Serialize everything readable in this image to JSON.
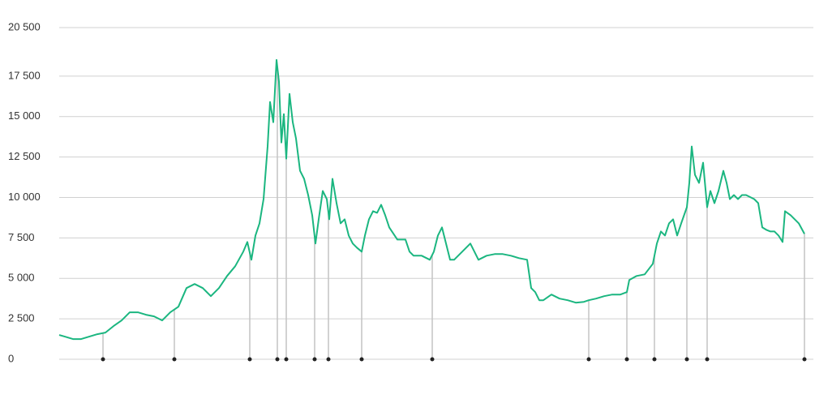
{
  "chart_data": {
    "type": "line",
    "x": [
      0,
      7,
      17,
      27,
      37,
      47,
      57,
      67,
      77,
      87,
      97,
      107,
      117,
      127,
      137,
      147,
      157,
      167,
      177,
      187,
      197,
      207,
      217,
      227,
      232,
      237,
      242,
      247,
      252,
      257,
      260,
      264,
      268,
      271,
      274,
      277,
      280,
      284,
      288,
      292,
      297,
      302,
      307,
      312,
      316,
      320,
      325,
      330,
      333,
      337,
      342,
      347,
      352,
      357,
      362,
      367,
      373,
      377,
      382,
      387,
      392,
      397,
      402,
      407,
      417,
      427,
      432,
      437,
      447,
      457,
      462,
      467,
      472,
      477,
      482,
      487,
      497,
      507,
      517,
      527,
      537,
      547,
      557,
      567,
      577,
      582,
      587,
      592,
      597,
      607,
      617,
      627,
      637,
      647,
      653,
      662,
      672,
      682,
      692,
      700,
      703,
      712,
      722,
      732,
      737,
      742,
      747,
      752,
      757,
      762,
      767,
      774,
      777,
      780,
      784,
      789,
      794,
      799,
      803,
      808,
      813,
      819,
      823,
      827,
      832,
      837,
      842,
      847,
      857,
      862,
      867,
      872,
      877,
      882,
      887,
      892,
      895,
      902,
      907,
      912,
      919
    ],
    "values": [
      1500,
      1400,
      1250,
      1250,
      1400,
      1550,
      1650,
      2050,
      2400,
      2900,
      2900,
      2750,
      2650,
      2400,
      2900,
      3250,
      4400,
      4650,
      4400,
      3900,
      4400,
      5150,
      5750,
      6650,
      7250,
      6150,
      7650,
      8400,
      9900,
      13150,
      15900,
      14650,
      18500,
      17150,
      13400,
      15150,
      12400,
      16400,
      14650,
      13650,
      11650,
      11150,
      10150,
      8900,
      7150,
      8650,
      10400,
      9900,
      8650,
      11150,
      9650,
      8400,
      8650,
      7650,
      7150,
      6900,
      6650,
      7650,
      8650,
      9150,
      9050,
      9550,
      8900,
      8150,
      7400,
      7400,
      6650,
      6400,
      6400,
      6150,
      6650,
      7650,
      8150,
      7150,
      6150,
      6150,
      6650,
      7150,
      6150,
      6400,
      6500,
      6500,
      6400,
      6250,
      6150,
      4400,
      4150,
      3650,
      3650,
      4000,
      3750,
      3650,
      3500,
      3550,
      3650,
      3750,
      3900,
      4000,
      4000,
      4150,
      4900,
      5150,
      5250,
      5900,
      7150,
      7900,
      7650,
      8400,
      8650,
      7650,
      8400,
      9400,
      10900,
      13150,
      11400,
      10900,
      12150,
      9400,
      10400,
      9650,
      10400,
      11650,
      10900,
      9900,
      10150,
      9900,
      10150,
      10150,
      9900,
      9650,
      8150,
      8000,
      7900,
      7900,
      7650,
      7250,
      9150,
      8900,
      8650,
      8400,
      7750
    ],
    "color": "#1bb680",
    "markers": [
      54,
      142,
      235,
      269,
      280,
      315,
      332,
      373,
      460,
      653,
      700,
      734,
      774,
      799,
      919
    ],
    "xlim": [
      0,
      919
    ],
    "ylim": [
      0,
      20500
    ],
    "yticks": [
      0,
      {
        "value": 2500,
        "label": "2 500"
      },
      {
        "value": 5000,
        "label": "5 000"
      },
      {
        "value": 7500,
        "label": "7 500"
      },
      {
        "value": 10000,
        "label": "10 000"
      },
      {
        "value": 12500,
        "label": "12 500"
      },
      {
        "value": 15000,
        "label": "15 000"
      },
      {
        "value": 17500,
        "label": "17 500"
      },
      {
        "value": 20500,
        "label": "20 500"
      }
    ],
    "grid": true
  }
}
